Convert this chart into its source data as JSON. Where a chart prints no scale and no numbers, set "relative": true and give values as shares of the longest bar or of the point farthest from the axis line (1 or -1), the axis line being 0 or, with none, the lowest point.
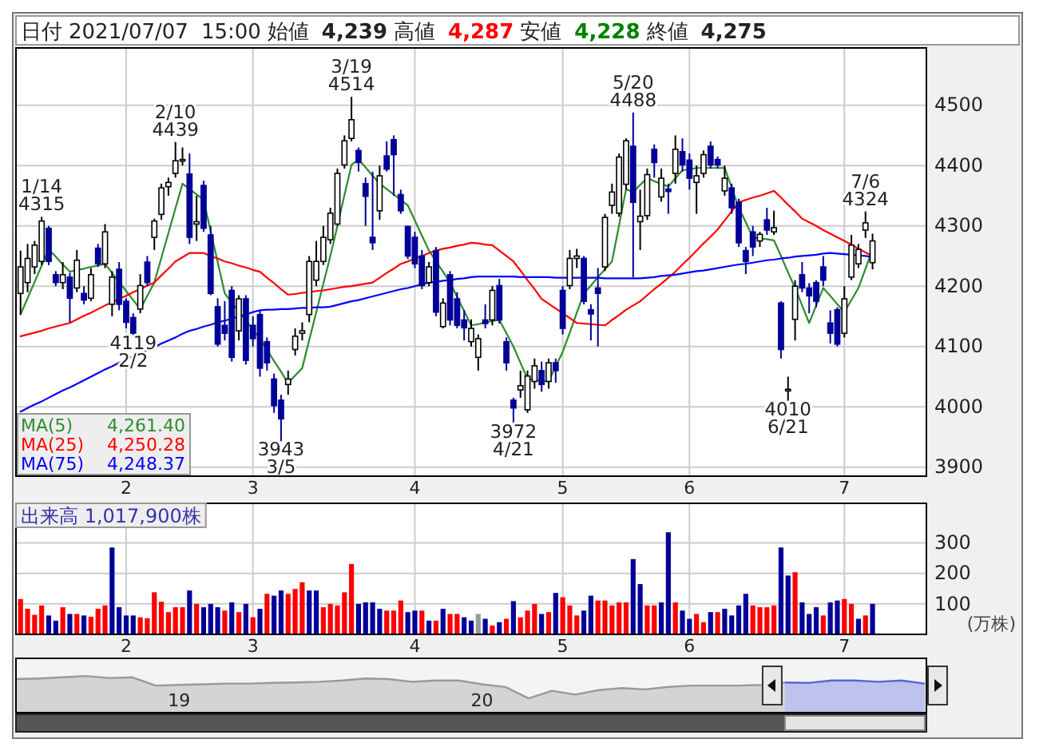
{
  "chart_data": [
    {
      "type": "candlestick",
      "title": "日付 2021/07/07 15:00 始値 4,239 高値 4,287 安値 4,228 終値 4,275",
      "categories": [
        null,
        null,
        null,
        null,
        null,
        null,
        null,
        null,
        null,
        null,
        null,
        null,
        null,
        null,
        null,
        "2",
        null,
        null,
        null,
        null,
        null,
        null,
        null,
        null,
        null,
        null,
        null,
        null,
        null,
        null,
        null,
        null,
        null,
        "3",
        null,
        null,
        null,
        null,
        null,
        null,
        null,
        null,
        null,
        null,
        null,
        null,
        null,
        null,
        null,
        null,
        null,
        null,
        null,
        null,
        null,
        null,
        "4",
        null,
        null,
        null,
        null,
        null,
        null,
        null,
        null,
        null,
        null,
        null,
        null,
        null,
        null,
        null,
        null,
        null,
        null,
        null,
        null,
        "5",
        null,
        null,
        null,
        null,
        null,
        null,
        null,
        null,
        null,
        null,
        null,
        null,
        null,
        null,
        null,
        null,
        null,
        "6",
        null,
        null,
        null,
        null,
        null,
        null,
        null,
        null,
        null,
        null,
        null,
        null,
        null,
        null,
        null,
        null,
        null,
        null,
        null,
        null,
        null,
        "7",
        null,
        null,
        null,
        null,
        null,
        null,
        null,
        null,
        null,
        null,
        null
      ],
      "ohlc": [
        [
          4188,
          4259,
          4153,
          4232
        ],
        [
          4206,
          4270,
          4190,
          4246
        ],
        [
          4232,
          4275,
          4220,
          4268
        ],
        [
          4241,
          4315,
          4235,
          4308
        ],
        [
          4296,
          4300,
          4235,
          4241
        ],
        [
          4219,
          4225,
          4200,
          4206
        ],
        [
          4206,
          4240,
          4195,
          4219
        ],
        [
          4215,
          4222,
          4140,
          4180
        ],
        [
          4197,
          4260,
          4190,
          4243
        ],
        [
          4188,
          4200,
          4170,
          4177
        ],
        [
          4180,
          4230,
          4175,
          4219
        ],
        [
          4263,
          4270,
          4232,
          4237
        ],
        [
          4237,
          4303,
          4230,
          4290
        ],
        [
          4170,
          4225,
          4150,
          4215
        ],
        [
          4228,
          4240,
          4160,
          4170
        ],
        [
          4175,
          4180,
          4130,
          4140
        ],
        [
          4148,
          4155,
          4119,
          4122
        ],
        [
          4162,
          4220,
          4155,
          4201
        ],
        [
          4240,
          4250,
          4200,
          4206
        ],
        [
          4281,
          4312,
          4260,
          4308
        ],
        [
          4319,
          4370,
          4310,
          4363
        ],
        [
          4365,
          4380,
          4350,
          4372
        ],
        [
          4387,
          4439,
          4380,
          4408
        ],
        [
          4408,
          4430,
          4400,
          4410
        ],
        [
          4386,
          4420,
          4270,
          4281
        ],
        [
          4303,
          4350,
          4275,
          4307
        ],
        [
          4367,
          4375,
          4290,
          4296
        ],
        [
          4285,
          4300,
          4185,
          4188
        ],
        [
          4166,
          4180,
          4100,
          4104
        ],
        [
          4135,
          4175,
          4110,
          4122
        ],
        [
          4193,
          4200,
          4075,
          4082
        ],
        [
          4126,
          4185,
          4110,
          4179
        ],
        [
          4179,
          4185,
          4070,
          4077
        ],
        [
          4135,
          4150,
          4100,
          4113
        ],
        [
          4153,
          4160,
          4050,
          4064
        ],
        [
          4108,
          4115,
          4060,
          4073
        ],
        [
          4046,
          4055,
          3990,
          4002
        ],
        [
          4011,
          4020,
          3943,
          3980
        ],
        [
          4037,
          4060,
          4020,
          4046
        ],
        [
          4095,
          4130,
          4085,
          4117
        ],
        [
          4122,
          4140,
          4110,
          4126
        ],
        [
          4153,
          4250,
          4140,
          4241
        ],
        [
          4210,
          4275,
          4200,
          4241
        ],
        [
          4241,
          4300,
          4235,
          4281
        ],
        [
          4277,
          4330,
          4270,
          4321
        ],
        [
          4303,
          4395,
          4300,
          4387
        ],
        [
          4401,
          4450,
          4395,
          4441
        ],
        [
          4445,
          4514,
          4440,
          4476
        ],
        [
          4425,
          4430,
          4390,
          4405
        ],
        [
          4370,
          4380,
          4300,
          4349
        ],
        [
          4281,
          4390,
          4260,
          4272
        ],
        [
          4325,
          4400,
          4310,
          4383
        ],
        [
          4416,
          4440,
          4390,
          4394
        ],
        [
          4443,
          4450,
          4350,
          4418
        ],
        [
          4352,
          4360,
          4320,
          4325
        ],
        [
          4299,
          4300,
          4245,
          4250
        ],
        [
          4281,
          4290,
          4230,
          4237
        ],
        [
          4250,
          4260,
          4195,
          4201
        ],
        [
          4206,
          4240,
          4200,
          4232
        ],
        [
          4259,
          4265,
          4150,
          4157
        ],
        [
          4133,
          4180,
          4130,
          4172
        ],
        [
          4219,
          4225,
          4135,
          4144
        ],
        [
          4179,
          4190,
          4130,
          4135
        ],
        [
          4144,
          4160,
          4110,
          4131
        ],
        [
          4108,
          4145,
          4100,
          4130
        ],
        [
          4082,
          4120,
          4060,
          4113
        ],
        [
          4144,
          4170,
          4130,
          4138
        ],
        [
          4144,
          4200,
          4135,
          4193
        ],
        [
          4201,
          4212,
          4138,
          4144
        ],
        [
          4108,
          4115,
          4060,
          4073
        ],
        [
          4011,
          4015,
          3972,
          3998
        ],
        [
          4028,
          4060,
          4015,
          4035
        ],
        [
          3995,
          4060,
          3990,
          4051
        ],
        [
          4042,
          4080,
          4030,
          4068
        ],
        [
          4060,
          4075,
          4025,
          4037
        ],
        [
          4042,
          4080,
          4030,
          4073
        ],
        [
          4073,
          4080,
          4040,
          4060
        ],
        [
          4193,
          4200,
          4120,
          4130
        ],
        [
          4201,
          4260,
          4195,
          4246
        ],
        [
          4246,
          4262,
          4230,
          4250
        ],
        [
          4246,
          4250,
          4170,
          4175
        ],
        [
          4161,
          4170,
          4110,
          4154
        ],
        [
          4197,
          4230,
          4100,
          4188
        ],
        [
          4232,
          4320,
          4225,
          4314
        ],
        [
          4334,
          4370,
          4320,
          4356
        ],
        [
          4321,
          4420,
          4315,
          4414
        ],
        [
          4369,
          4445,
          4360,
          4441
        ],
        [
          4432,
          4488,
          4215,
          4339
        ],
        [
          4307,
          4360,
          4260,
          4316
        ],
        [
          4317,
          4395,
          4310,
          4385
        ],
        [
          4427,
          4435,
          4380,
          4405
        ],
        [
          4348,
          4395,
          4340,
          4379
        ],
        [
          4361,
          4370,
          4320,
          4357
        ],
        [
          4387,
          4450,
          4370,
          4427
        ],
        [
          4423,
          4445,
          4390,
          4401
        ],
        [
          4409,
          4420,
          4360,
          4379
        ],
        [
          4372,
          4400,
          4320,
          4383
        ],
        [
          4387,
          4425,
          4380,
          4418
        ],
        [
          4432,
          4440,
          4395,
          4401
        ],
        [
          4410,
          4415,
          4395,
          4401
        ],
        [
          4358,
          4400,
          4350,
          4379
        ],
        [
          4363,
          4370,
          4320,
          4330
        ],
        [
          4339,
          4345,
          4265,
          4272
        ],
        [
          4259,
          4265,
          4220,
          4241
        ],
        [
          4290,
          4300,
          4250,
          4265
        ],
        [
          4275,
          4290,
          4265,
          4286
        ],
        [
          4310,
          4330,
          4285,
          4293
        ],
        [
          4290,
          4325,
          4285,
          4297
        ],
        [
          4172,
          4175,
          4080,
          4095
        ],
        [
          4028,
          4050,
          4010,
          4029
        ],
        [
          4145,
          4210,
          4110,
          4200
        ],
        [
          4219,
          4240,
          4190,
          4197
        ],
        [
          4197,
          4205,
          4155,
          4184
        ],
        [
          4206,
          4210,
          4165,
          4175
        ],
        [
          4232,
          4250,
          4200,
          4210
        ],
        [
          4139,
          4160,
          4105,
          4122
        ],
        [
          4161,
          4165,
          4100,
          4104
        ],
        [
          4122,
          4200,
          4115,
          4179
        ],
        [
          4215,
          4285,
          4210,
          4268
        ],
        [
          4237,
          4270,
          4230,
          4261
        ],
        [
          4293,
          4324,
          4280,
          4305
        ],
        [
          4239,
          4287,
          4228,
          4275
        ],
        null,
        null,
        null,
        null,
        null,
        null,
        null
      ],
      "series": [
        {
          "name": "MA(5)",
          "type": "line",
          "color": "#2e8b2e",
          "values": [
            4153,
            4180,
            4207,
            4234,
            4261,
            4249,
            4236,
            4224,
            4227,
            4229,
            4232,
            4234,
            4237,
            4222,
            4207,
            4192,
            4177,
            4162,
            4184,
            4206,
            4247,
            4288,
            4329,
            4370,
            4361,
            4352,
            4343,
            4291,
            4240,
            4188,
            4173,
            4158,
            4143,
            4128,
            4113,
            4095,
            4076,
            4058,
            4039,
            4052,
            4064,
            4111,
            4157,
            4204,
            4250,
            4300,
            4351,
            4401,
            4410,
            4397,
            4383,
            4370,
            4361,
            4352,
            4343,
            4334,
            4309,
            4284,
            4259,
            4241,
            4224,
            4206,
            4182,
            4159,
            4135,
            4137,
            4140,
            4142,
            4144,
            4122,
            4100,
            4073,
            4046,
            4045,
            4043,
            4042,
            4067,
            4091,
            4123,
            4156,
            4188,
            4201,
            4215,
            4228,
            4241,
            4301,
            4361,
            4356,
            4368,
            4379,
            4374,
            4370,
            4365,
            4379,
            4392,
            4394,
            4396,
            4396,
            4396,
            4396,
            4396,
            4363,
            4330,
            4306,
            4281,
            4279,
            4278,
            4276,
            4250,
            4223,
            4197,
            4168,
            4139,
            4168,
            4197,
            4184,
            4170,
            4157,
            4177,
            4197,
            4229,
            4261.4,
            null,
            null,
            null,
            null,
            null,
            null,
            null
          ]
        },
        {
          "name": "MA(25)",
          "type": "line",
          "color": "#ff0000",
          "values": [
            4117,
            4120,
            4123,
            4126,
            4130,
            4133,
            4136,
            4139,
            4145,
            4151,
            4156,
            4162,
            4168,
            4173,
            4179,
            4184,
            4190,
            4195,
            4201,
            4206,
            4218,
            4229,
            4241,
            4248,
            4255,
            4255,
            4255,
            4250,
            4246,
            4241,
            4238,
            4234,
            4231,
            4227,
            4224,
            4214,
            4205,
            4195,
            4186,
            4187,
            4189,
            4190,
            4192,
            4193,
            4195,
            4197,
            4199,
            4200,
            4202,
            4204,
            4206,
            4214,
            4222,
            4229,
            4237,
            4241,
            4246,
            4250,
            4255,
            4259,
            4262,
            4264,
            4267,
            4269,
            4272,
            4271,
            4269,
            4268,
            4259,
            4250,
            4241,
            4226,
            4210,
            4195,
            4179,
            4171,
            4163,
            4155,
            4147,
            4139,
            4138,
            4137,
            4136,
            4135,
            4144,
            4152,
            4161,
            4168,
            4175,
            4185,
            4195,
            4204,
            4214,
            4224,
            4236,
            4247,
            4259,
            4271,
            4282,
            4294,
            4309,
            4324,
            4339,
            4343,
            4347,
            4350,
            4354,
            4358,
            4347,
            4335,
            4324,
            4312,
            4306,
            4300,
            4293,
            4287,
            4281,
            4275,
            4269,
            4262,
            4256,
            4250.28,
            null,
            null,
            null,
            null,
            null,
            null,
            null
          ]
        },
        {
          "name": "MA(75)",
          "type": "line",
          "color": "#0000ff",
          "values": [
            3992,
            3998,
            4004,
            4009,
            4015,
            4021,
            4027,
            4032,
            4038,
            4044,
            4050,
            4056,
            4062,
            4067,
            4073,
            4078,
            4084,
            4089,
            4094,
            4099,
            4105,
            4110,
            4115,
            4121,
            4126,
            4129,
            4133,
            4136,
            4140,
            4143,
            4146,
            4150,
            4153,
            4157,
            4160,
            4161,
            4161,
            4162,
            4162,
            4163,
            4164,
            4164,
            4165,
            4165,
            4166,
            4169,
            4172,
            4175,
            4177,
            4180,
            4183,
            4186,
            4189,
            4192,
            4195,
            4197,
            4200,
            4203,
            4206,
            4207,
            4209,
            4210,
            4212,
            4213,
            4215,
            4216,
            4216,
            4216,
            4216,
            4216,
            4216,
            4215,
            4215,
            4215,
            4215,
            4215,
            4214,
            4214,
            4214,
            4214,
            4214,
            4214,
            4214,
            4213,
            4213,
            4213,
            4213,
            4213,
            4213,
            4214,
            4215,
            4217,
            4218,
            4219,
            4221,
            4223,
            4225,
            4226,
            4228,
            4230,
            4232,
            4234,
            4236,
            4237,
            4239,
            4241,
            4243,
            4244,
            4246,
            4247,
            4249,
            4250,
            4251,
            4252,
            4254,
            4255,
            4254,
            4253,
            4252,
            4251,
            4250,
            4248.37,
            null,
            null,
            null,
            null,
            null,
            null,
            null
          ]
        }
      ],
      "annotations": [
        {
          "text": "1/14\n4315",
          "y": 4315
        },
        {
          "text": "2/10\n4439",
          "y": 4439
        },
        {
          "text": "3/19\n4514",
          "y": 4514
        },
        {
          "text": "5/20\n4488",
          "y": 4488
        },
        {
          "text": "7/6\n4324",
          "y": 4324
        },
        {
          "text": "4119\n2/2",
          "y": 4119
        },
        {
          "text": "3943\n3/5",
          "y": 3943
        },
        {
          "text": "3972\n4/21",
          "y": 3972
        },
        {
          "text": "4010\n6/21",
          "y": 4010
        },
        "4,261.40",
        "4,250.28",
        "4,248.37"
      ],
      "ylim": [
        3885,
        4595
      ],
      "yticks": [
        3900,
        4000,
        4100,
        4200,
        4300,
        4400,
        4500
      ],
      "grid": true,
      "legend": "bottom left"
    },
    {
      "type": "bar",
      "ylabel": "(万株)",
      "annotations": [
        "出来高 1,017,900株"
      ],
      "categories": [
        null,
        null,
        null,
        null,
        null,
        null,
        null,
        null,
        null,
        null,
        null,
        null,
        null,
        null,
        null,
        "2",
        null,
        null,
        null,
        null,
        null,
        null,
        null,
        null,
        null,
        null,
        null,
        null,
        null,
        null,
        null,
        null,
        null,
        "3",
        null,
        null,
        null,
        null,
        null,
        null,
        null,
        null,
        null,
        null,
        null,
        null,
        null,
        null,
        null,
        null,
        null,
        null,
        null,
        null,
        null,
        null,
        "4",
        null,
        null,
        null,
        null,
        null,
        null,
        null,
        null,
        null,
        null,
        null,
        null,
        null,
        null,
        null,
        null,
        null,
        null,
        null,
        null,
        "5",
        null,
        null,
        null,
        null,
        null,
        null,
        null,
        null,
        null,
        null,
        null,
        null,
        null,
        null,
        null,
        null,
        null,
        "6",
        null,
        null,
        null,
        null,
        null,
        null,
        null,
        null,
        null,
        null,
        null,
        null,
        null,
        null,
        null,
        null,
        null,
        null,
        null,
        null,
        null,
        "7",
        null,
        null,
        null,
        null,
        null,
        null,
        null,
        null,
        null,
        null,
        null
      ],
      "values": [
        116,
        84,
        64,
        95,
        62,
        45,
        89,
        67,
        67,
        62,
        58,
        84,
        95,
        285,
        89,
        62,
        62,
        56,
        53,
        138,
        107,
        73,
        89,
        89,
        144,
        100,
        89,
        100,
        89,
        78,
        105,
        73,
        100,
        56,
        84,
        133,
        127,
        144,
        133,
        149,
        171,
        144,
        144,
        89,
        100,
        95,
        138,
        231,
        100,
        105,
        105,
        84,
        78,
        78,
        111,
        73,
        78,
        78,
        45,
        45,
        84,
        67,
        67,
        56,
        45,
        67,
        51,
        29,
        40,
        51,
        109,
        56,
        78,
        100,
        67,
        73,
        136,
        122,
        95,
        62,
        78,
        127,
        111,
        111,
        95,
        105,
        105,
        247,
        165,
        95,
        95,
        105,
        335,
        105,
        78,
        51,
        67,
        40,
        73,
        73,
        84,
        62,
        95,
        133,
        95,
        89,
        89,
        95,
        285,
        193,
        204,
        105,
        67,
        89,
        62,
        105,
        111,
        116,
        100,
        51,
        62,
        100,
        null,
        null,
        null,
        null,
        null,
        null,
        null
      ],
      "colors": [
        "#ff0000",
        "#ff0000",
        "#ff0000",
        "#ff0000",
        "#000099",
        "#000099",
        "#ff0000",
        "#000099",
        "#ff0000",
        "#000099",
        "#ff0000",
        "#ff0000",
        "#ff0000",
        "#000099",
        "#000099",
        "#000099",
        "#000099",
        "#ff0000",
        "#ff0000",
        "#ff0000",
        "#ff0000",
        "#ff0000",
        "#ff0000",
        "#ff0000",
        "#000099",
        "#ff0000",
        "#000099",
        "#000099",
        "#000099",
        "#ff0000",
        "#000099",
        "#ff0000",
        "#000099",
        "#ff0000",
        "#000099",
        "#ff0000",
        "#000099",
        "#000099",
        "#ff0000",
        "#ff0000",
        "#ff0000",
        "#000099",
        "#000099",
        "#ff0000",
        "#ff0000",
        "#ff0000",
        "#ff0000",
        "#ff0000",
        "#000099",
        "#000099",
        "#000099",
        "#000099",
        "#ff0000",
        "#ff0000",
        "#ff0000",
        "#000099",
        "#000099",
        "#ff0000",
        "#000099",
        "#ff0000",
        "#000099",
        "#ff0000",
        "#ff0000",
        "#000099",
        "#000099",
        "#999999",
        "#000099",
        "#ff0000",
        "#000099",
        "#ff0000",
        "#000099",
        "#ff0000",
        "#ff0000",
        "#ff0000",
        "#000099",
        "#ff0000",
        "#000099",
        "#ff0000",
        "#ff0000",
        "#ff0000",
        "#000099",
        "#000099",
        "#ff0000",
        "#ff0000",
        "#ff0000",
        "#ff0000",
        "#ff0000",
        "#000099",
        "#000099",
        "#ff0000",
        "#ff0000",
        "#000099",
        "#000099",
        "#ff0000",
        "#000099",
        "#000099",
        "#ff0000",
        "#ff0000",
        "#000099",
        "#ff0000",
        "#000099",
        "#000099",
        "#000099",
        "#000099",
        "#ff0000",
        "#ff0000",
        "#ff0000",
        "#ff0000",
        "#000099",
        "#000099",
        "#ff0000",
        "#000099",
        "#000099",
        "#000099",
        "#ff0000",
        "#000099",
        "#000099",
        "#ff0000",
        "#ff0000",
        "#000099",
        "#ff0000",
        "#000099",
        null,
        null,
        null,
        null,
        null,
        null,
        null
      ],
      "ylim": [
        0,
        430
      ],
      "yticks": [
        100,
        200,
        300
      ],
      "grid": true
    },
    {
      "type": "area",
      "relative": true,
      "tick_labels": "x",
      "categories": [
        null,
        null,
        null,
        null,
        null,
        null,
        null,
        "19",
        null,
        null,
        null,
        null,
        null,
        null,
        null,
        null,
        null,
        null,
        null,
        null,
        "20",
        null,
        null,
        null,
        null,
        null,
        null,
        null,
        null,
        null,
        null,
        null,
        null,
        null,
        null,
        null,
        null,
        null,
        null,
        null
      ],
      "series": [
        {
          "color": "#999999",
          "values": [
            0.86,
            0.89,
            0.94,
            1,
            0.91,
            0.94,
            0.57,
            0.6,
            0.63,
            0.66,
            0.66,
            0.69,
            0.71,
            0.74,
            0.8,
            0.89,
            0.86,
            0.74,
            0.8,
            0.8,
            0.63,
            0.51,
            0,
            0.34,
            0.17,
            0.37,
            0.46,
            0.4,
            0.51,
            0.57,
            0.57,
            0.57,
            0.6,
            0.71,
            null,
            null,
            null,
            null,
            null,
            null
          ]
        },
        {
          "color": "#5566dd",
          "values": [
            null,
            null,
            null,
            null,
            null,
            null,
            null,
            null,
            null,
            null,
            null,
            null,
            null,
            null,
            null,
            null,
            null,
            null,
            null,
            null,
            null,
            null,
            null,
            null,
            null,
            null,
            null,
            null,
            null,
            null,
            null,
            null,
            null,
            0.71,
            0.69,
            0.8,
            0.8,
            0.74,
            0.8,
            0.66
          ]
        }
      ]
    }
  ]
}
